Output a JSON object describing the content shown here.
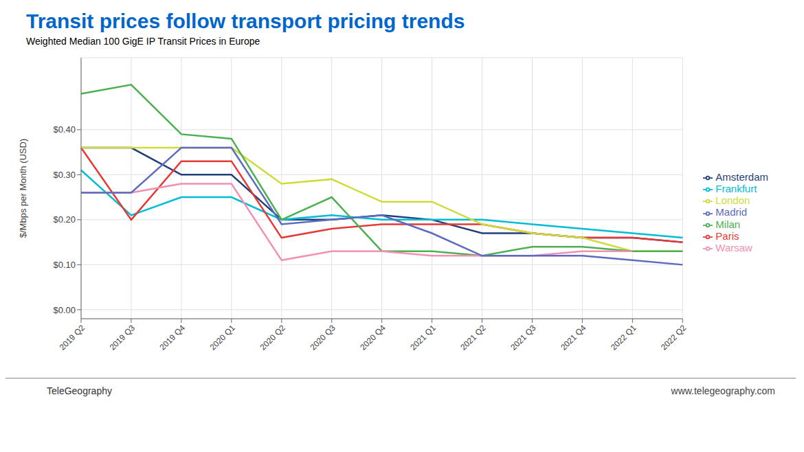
{
  "chart_data": {
    "type": "line",
    "title": "Transit prices follow transport pricing trends",
    "subtitle": "Weighted Median 100 GigE IP Transit Prices in Europe",
    "ylabel": "$/Mbps per Month (USD)",
    "annotations": [
      "TeleGeography",
      "www.telegeography.com"
    ],
    "categories": [
      "2019 Q2",
      "2019 Q3",
      "2019 Q4",
      "2020 Q1",
      "2020 Q2",
      "2020 Q3",
      "2020 Q4",
      "2021 Q1",
      "2021 Q2",
      "2021 Q3",
      "2021 Q4",
      "2022 Q1",
      "2022 Q2"
    ],
    "series": [
      {
        "name": "Amsterdam",
        "color": "#1f3f7a",
        "values": [
          0.36,
          0.36,
          0.3,
          0.3,
          0.2,
          0.2,
          0.21,
          0.2,
          0.17,
          0.17,
          0.16,
          0.16,
          0.15
        ]
      },
      {
        "name": "Frankfurt",
        "color": "#00bcd4",
        "values": [
          0.31,
          0.21,
          0.25,
          0.25,
          0.2,
          0.21,
          0.2,
          0.2,
          0.2,
          0.19,
          0.18,
          0.17,
          0.16
        ]
      },
      {
        "name": "Paris",
        "color": "#e53935",
        "values": [
          0.36,
          0.2,
          0.33,
          0.33,
          0.16,
          0.18,
          0.19,
          0.19,
          0.19,
          0.17,
          0.16,
          0.16,
          0.15
        ]
      },
      {
        "name": "London",
        "color": "#cddc39",
        "values": [
          0.36,
          0.36,
          0.36,
          0.36,
          0.28,
          0.29,
          0.24,
          0.24,
          0.19,
          0.17,
          0.16,
          0.13,
          0.13
        ]
      },
      {
        "name": "Milan",
        "color": "#4caf50",
        "values": [
          0.48,
          0.5,
          0.39,
          0.38,
          0.2,
          0.25,
          0.13,
          0.13,
          0.12,
          0.14,
          0.14,
          0.13,
          0.13
        ]
      },
      {
        "name": "Warsaw",
        "color": "#f48fb1",
        "values": [
          0.26,
          0.26,
          0.28,
          0.28,
          0.11,
          0.13,
          0.13,
          0.12,
          0.12,
          0.12,
          0.13,
          0.13,
          null
        ]
      },
      {
        "name": "Madrid",
        "color": "#5c6bc0",
        "values": [
          0.26,
          0.26,
          0.36,
          0.36,
          0.19,
          0.2,
          0.21,
          0.17,
          0.12,
          0.12,
          0.12,
          0.11,
          0.1
        ]
      }
    ],
    "ylim": [
      -0.02,
      0.56
    ],
    "yticks": [
      {
        "value": 0.0,
        "label": "$0.00"
      },
      {
        "value": 0.1,
        "label": "$0.10"
      },
      {
        "value": 0.2,
        "label": "$0.20"
      },
      {
        "value": 0.3,
        "label": "$0.30"
      },
      {
        "value": 0.4,
        "label": "$0.40"
      }
    ],
    "grid": true,
    "legend": "right"
  }
}
